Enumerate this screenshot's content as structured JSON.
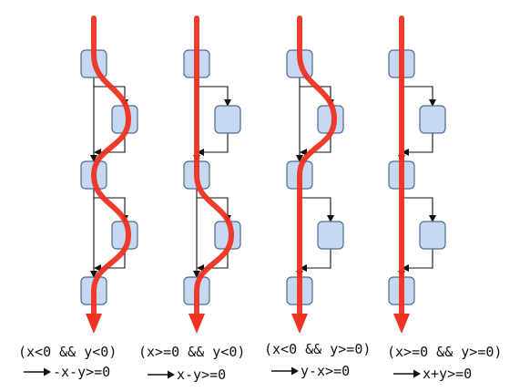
{
  "colors": {
    "node_fill": "#c6d9f1",
    "node_stroke": "#4f6b8f",
    "edge": "#111111",
    "path": "#ee3322",
    "text": "#111111"
  },
  "columns": [
    {
      "condition": "(x<0 && y<0)",
      "formula": "-x-y>=0",
      "path_icon": "red-path-arrow",
      "taken_right_branches": [
        true,
        true
      ]
    },
    {
      "condition": "(x>=0 && y<0)",
      "formula": "x-y>=0",
      "path_icon": "red-path-arrow",
      "taken_right_branches": [
        false,
        true
      ]
    },
    {
      "condition": "(x<0 && y>=0)",
      "formula": "y-x>=0",
      "path_icon": "red-path-arrow",
      "taken_right_branches": [
        true,
        false
      ]
    },
    {
      "condition": "(x>=0 && y>=0)",
      "formula": "x+y>=0",
      "path_icon": "red-path-arrow",
      "taken_right_branches": [
        false,
        false
      ]
    }
  ],
  "arrow_icon": "long-right-arrow-icon"
}
